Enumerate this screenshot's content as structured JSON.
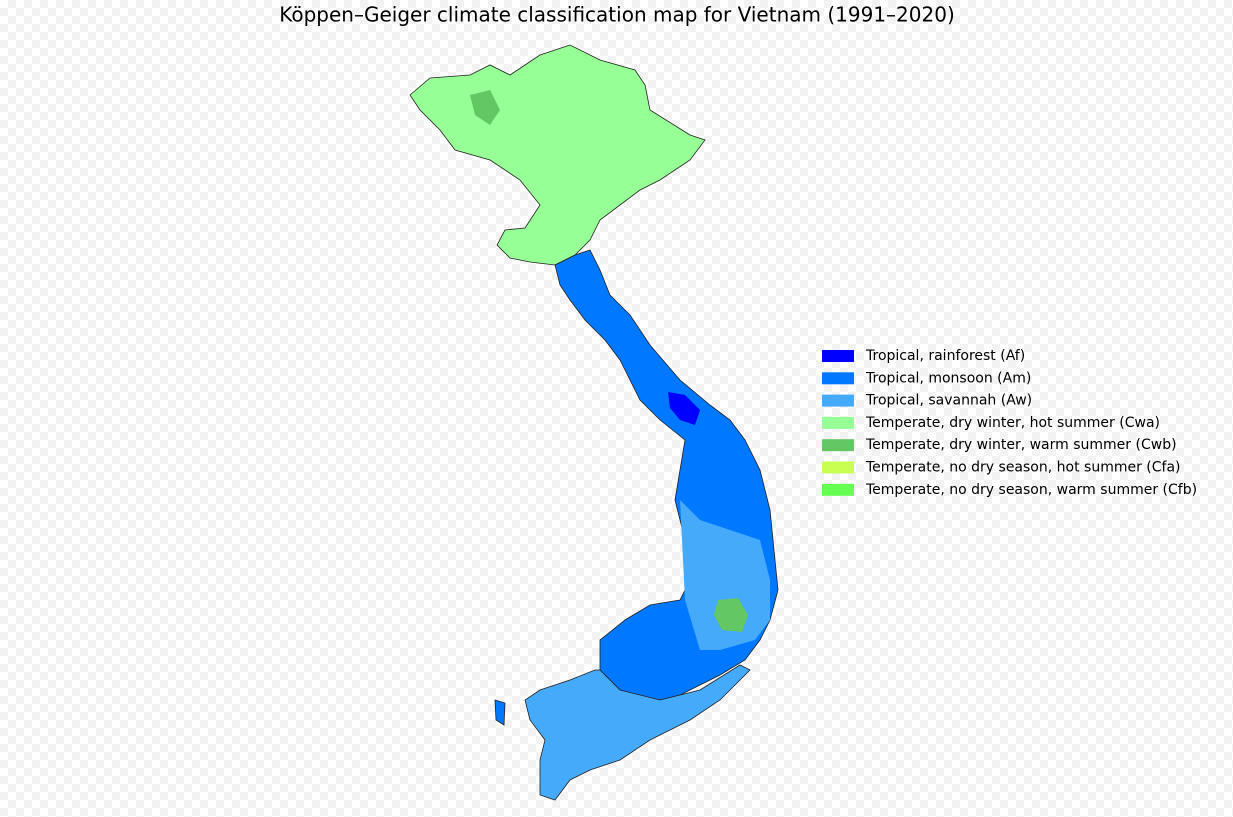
{
  "title": "Köppen–Geiger climate classification map for Vietnam (1991–2020)",
  "legend": {
    "items": [
      {
        "label": "Tropical, rainforest (Af)",
        "color": "#0000fe"
      },
      {
        "label": "Tropical, monsoon (Am)",
        "color": "#0078ff"
      },
      {
        "label": "Tropical, savannah (Aw)",
        "color": "#46aafa"
      },
      {
        "label": "Temperate, dry winter, hot summer (Cwa)",
        "color": "#96ff96"
      },
      {
        "label": "Temperate, dry winter, warm summer (Cwb)",
        "color": "#63c764"
      },
      {
        "label": "Temperate, no dry season, hot summer (Cfa)",
        "color": "#c8ff50"
      },
      {
        "label": "Temperate, no dry season, warm summer (Cfb)",
        "color": "#64ff50"
      }
    ]
  }
}
